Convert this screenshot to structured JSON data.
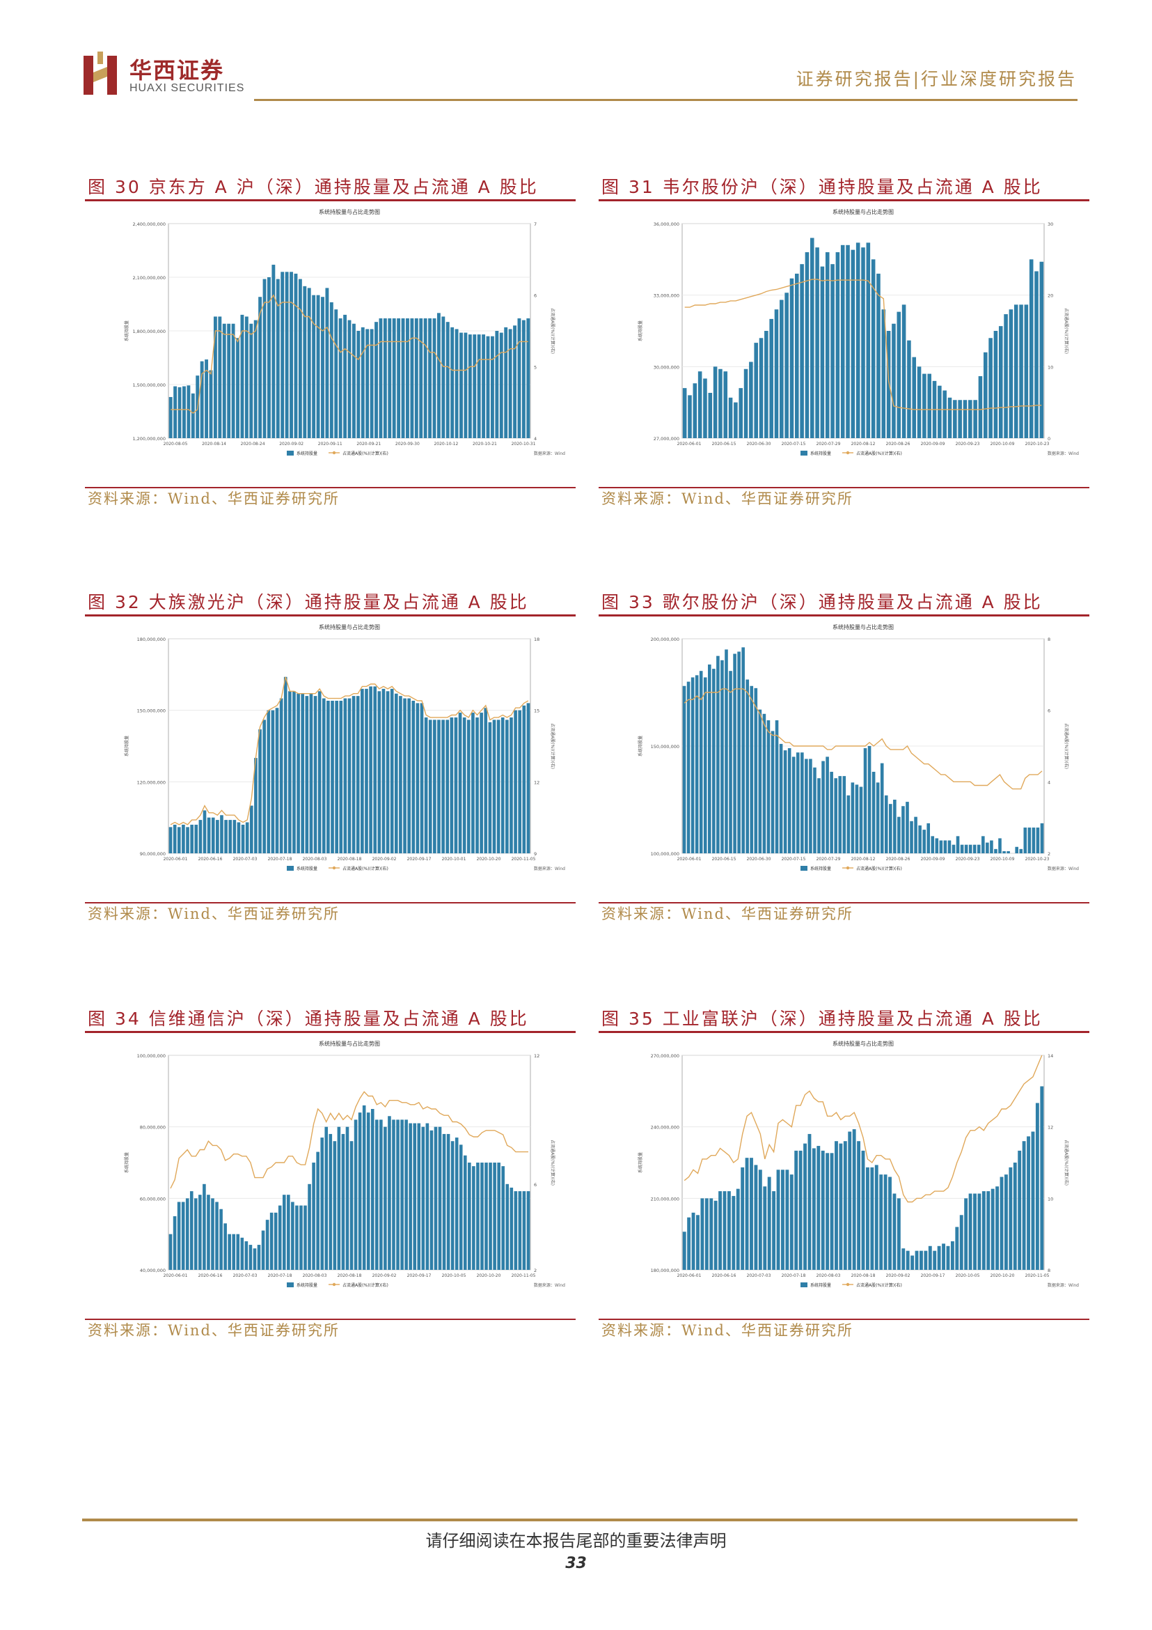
{
  "header": {
    "brand_cn": "华西证券",
    "brand_en": "HUAXI SECURITIES",
    "report_type": "证券研究报告|行业深度研究报告",
    "colors": {
      "brand_red": "#9e2a2a",
      "gold": "#b08a4a",
      "title_red": "#a3242b"
    }
  },
  "figures": [
    {
      "title": "图 30 京东方 A 沪（深）通持股量及占流通 A 股比",
      "source": "资料来源：Wind、华西证券研究所"
    },
    {
      "title": "图 31 韦尔股份沪（深）通持股量及占流通 A 股比",
      "source": "资料来源：Wind、华西证券研究所"
    },
    {
      "title": "图 32 大族激光沪（深）通持股量及占流通 A 股比",
      "source": "资料来源：Wind、华西证券研究所"
    },
    {
      "title": "图 33 歌尔股份沪（深）通持股量及占流通 A 股比",
      "source": "资料来源：Wind、华西证券研究所"
    },
    {
      "title": "图 34 信维通信沪（深）通持股量及占流通 A 股比",
      "source": "资料来源：Wind、华西证券研究所"
    },
    {
      "title": "图 35 工业富联沪（深）通持股量及占流通 A 股比",
      "source": "资料来源：Wind、华西证券研究所"
    }
  ],
  "chart_data": [
    {
      "type": "bar",
      "title": "系统持股量与占比走势图",
      "legend": [
        "系统持股量",
        "占流通A股(%)(计算)(右)"
      ],
      "legend_position": "bottom",
      "source_note": "数据来源：Wind",
      "y_left_ticks": [
        "1,200,000,000",
        "1,500,000,000",
        "1,800,000,000",
        "2,100,000,000",
        "2,400,000,000"
      ],
      "y_left_range": [
        1200000000,
        2400000000
      ],
      "y_right_ticks": [
        "4",
        "5",
        "6",
        "7"
      ],
      "y_right_range": [
        4,
        7
      ],
      "x_ticks": [
        "2020-08-05",
        "2020-08-14",
        "2020-08-24",
        "2020-09-02",
        "2020-09-11",
        "2020-09-21",
        "2020-09-30",
        "2020-10-12",
        "2020-10-21",
        "2020-10-31"
      ],
      "bars": [
        1430,
        1490,
        1485,
        1490,
        1495,
        1450,
        1550,
        1630,
        1640,
        1580,
        1880,
        1880,
        1840,
        1840,
        1840,
        1760,
        1890,
        1880,
        1840,
        1860,
        1990,
        2090,
        2100,
        2170,
        2090,
        2130,
        2130,
        2130,
        2120,
        2090,
        2050,
        2040,
        2000,
        2000,
        1990,
        2040,
        1960,
        1920,
        1870,
        1890,
        1860,
        1840,
        1800,
        1820,
        1810,
        1810,
        1850,
        1870,
        1870,
        1870,
        1870,
        1870,
        1870,
        1870,
        1870,
        1870,
        1870,
        1870,
        1870,
        1870,
        1900,
        1880,
        1850,
        1820,
        1810,
        1790,
        1790,
        1780,
        1780,
        1780,
        1780,
        1770,
        1770,
        1800,
        1790,
        1820,
        1810,
        1830,
        1870,
        1860,
        1870
      ],
      "line": [
        4.4,
        4.4,
        4.4,
        4.4,
        4.4,
        4.35,
        4.4,
        4.9,
        4.95,
        4.9,
        5.5,
        5.5,
        5.45,
        5.45,
        5.45,
        5.35,
        5.5,
        5.5,
        5.45,
        5.5,
        5.75,
        5.9,
        5.9,
        6.0,
        5.85,
        5.9,
        5.9,
        5.9,
        5.85,
        5.8,
        5.7,
        5.7,
        5.6,
        5.55,
        5.5,
        5.55,
        5.4,
        5.3,
        5.2,
        5.25,
        5.2,
        5.15,
        5.1,
        5.2,
        5.3,
        5.3,
        5.3,
        5.35,
        5.35,
        5.35,
        5.35,
        5.35,
        5.35,
        5.35,
        5.4,
        5.4,
        5.35,
        5.3,
        5.2,
        5.2,
        5.1,
        5.0,
        5.0,
        4.95,
        4.95,
        4.95,
        4.95,
        5.0,
        5.0,
        5.1,
        5.1,
        5.1,
        5.1,
        5.15,
        5.2,
        5.2,
        5.25,
        5.25,
        5.35,
        5.35,
        5.35
      ]
    },
    {
      "type": "bar",
      "title": "系统持股量与占比走势图",
      "legend": [
        "系统持股量",
        "占流通A股(%)(计算)(右)"
      ],
      "legend_position": "bottom",
      "source_note": "数据来源：Wind",
      "y_left_ticks": [
        "27,000,000",
        "30,000,000",
        "33,000,000",
        "36,000,000"
      ],
      "y_left_range": [
        27000000,
        36000000
      ],
      "y_right_ticks": [
        "0",
        "10",
        "20",
        "30"
      ],
      "y_right_range": [
        0,
        30
      ],
      "x_ticks": [
        "2020-06-01",
        "2020-06-15",
        "2020-06-30",
        "2020-07-15",
        "2020-07-29",
        "2020-08-12",
        "2020-08-26",
        "2020-09-09",
        "2020-09-23",
        "2020-10-09",
        "2020-10-23"
      ],
      "bars": [
        29.1,
        28.8,
        29.3,
        29.8,
        29.5,
        28.9,
        30.0,
        29.9,
        29.8,
        28.7,
        28.5,
        29.1,
        29.9,
        30.2,
        31.0,
        31.2,
        31.5,
        32.0,
        32.4,
        32.8,
        33.1,
        33.7,
        33.9,
        34.3,
        34.8,
        35.4,
        35.0,
        34.2,
        34.8,
        34.3,
        34.8,
        35.1,
        35.1,
        34.9,
        35.2,
        35.0,
        35.2,
        34.5,
        33.9,
        32.4,
        31.5,
        31.8,
        32.3,
        32.6,
        31.1,
        30.4,
        30.0,
        29.7,
        29.7,
        29.4,
        29.2,
        29.0,
        28.7,
        28.6,
        28.6,
        28.6,
        28.6,
        28.6,
        29.6,
        30.6,
        31.2,
        31.5,
        31.7,
        32.2,
        32.4,
        32.6,
        32.6,
        32.6,
        34.5,
        34.0,
        34.4
      ],
      "line": [
        18.3,
        18.3,
        18.6,
        18.6,
        18.6,
        18.8,
        18.8,
        19.0,
        19.0,
        19.2,
        19.2,
        19.4,
        19.6,
        19.8,
        20.0,
        20.2,
        20.5,
        20.7,
        20.8,
        21.0,
        21.2,
        21.4,
        21.6,
        21.8,
        22.0,
        22.2,
        22.2,
        22.0,
        22.1,
        22.0,
        22.1,
        22.1,
        22.1,
        22.1,
        22.1,
        22.1,
        22.0,
        21.0,
        20.0,
        19.5,
        8.0,
        4.5,
        4.3,
        4.2,
        4.1,
        4.0,
        4.0,
        4.0,
        4.0,
        4.0,
        4.0,
        4.0,
        4.0,
        4.0,
        4.0,
        4.0,
        4.0,
        4.0,
        4.0,
        4.1,
        4.2,
        4.2,
        4.3,
        4.3,
        4.4,
        4.4,
        4.5,
        4.5,
        4.5,
        4.6,
        4.6
      ],
      "y_left_label": "系统持股量"
    },
    {
      "type": "bar",
      "title": "系统持股量与占比走势图",
      "legend": [
        "系统持股量",
        "占流通A股(%)(计算)(右)"
      ],
      "legend_position": "bottom",
      "source_note": "数据来源：Wind",
      "y_left_ticks": [
        "90,000,000",
        "120,000,000",
        "150,000,000",
        "180,000,000"
      ],
      "y_left_range": [
        90000000,
        180000000
      ],
      "y_right_ticks": [
        "9",
        "12",
        "15",
        "18"
      ],
      "y_right_range": [
        9,
        18
      ],
      "x_ticks": [
        "2020-06-01",
        "2020-06-16",
        "2020-07-03",
        "2020-07-18",
        "2020-08-03",
        "2020-08-18",
        "2020-09-02",
        "2020-09-17",
        "2020-10-01",
        "2020-10-20",
        "2020-11-05"
      ],
      "bars": [
        101,
        102,
        101,
        102,
        101,
        102,
        102,
        104,
        108,
        105,
        105,
        104,
        106,
        104,
        104,
        104,
        103,
        102,
        103,
        110,
        130,
        142,
        146,
        150,
        150,
        151,
        155,
        164,
        158,
        158,
        157,
        157,
        156,
        157,
        156,
        158,
        155,
        154,
        154,
        154,
        154,
        155,
        155,
        156,
        156,
        159,
        159,
        160,
        160,
        158,
        159,
        158,
        159,
        157,
        156,
        155,
        155,
        154,
        153,
        153,
        147,
        146,
        146,
        146,
        146,
        146,
        147,
        147,
        149,
        147,
        146,
        149,
        147,
        149,
        151,
        145,
        146,
        146,
        147,
        146,
        147,
        150,
        150,
        152,
        153
      ],
      "line": [
        10.2,
        10.3,
        10.2,
        10.3,
        10.2,
        10.4,
        10.4,
        10.6,
        11.0,
        10.7,
        10.7,
        10.6,
        10.8,
        10.6,
        10.6,
        10.6,
        10.4,
        10.3,
        10.4,
        11.3,
        13.0,
        14.3,
        14.7,
        15.0,
        15.1,
        15.2,
        15.5,
        16.4,
        15.8,
        15.8,
        15.7,
        15.7,
        15.7,
        15.7,
        15.7,
        15.9,
        15.6,
        15.5,
        15.5,
        15.5,
        15.5,
        15.6,
        15.6,
        15.7,
        15.7,
        16.0,
        16.0,
        16.1,
        16.1,
        15.9,
        16.0,
        15.9,
        16.0,
        15.8,
        15.7,
        15.6,
        15.6,
        15.5,
        15.4,
        15.4,
        14.8,
        14.7,
        14.7,
        14.7,
        14.7,
        14.7,
        14.8,
        14.8,
        15.0,
        14.8,
        14.7,
        15.0,
        14.8,
        15.0,
        15.2,
        14.6,
        14.7,
        14.7,
        14.8,
        14.7,
        14.8,
        15.1,
        15.1,
        15.3,
        15.4
      ]
    },
    {
      "type": "bar",
      "title": "系统持股量与占比走势图",
      "legend": [
        "系统持股量",
        "占流通A股(%)(计算)(右)"
      ],
      "legend_position": "bottom",
      "source_note": "数据来源：Wind",
      "y_left_ticks": [
        "100,000,000",
        "150,000,000",
        "200,000,000"
      ],
      "y_left_range": [
        100000000,
        200000000
      ],
      "y_right_ticks": [
        "2",
        "4",
        "6",
        "8"
      ],
      "y_right_range": [
        2,
        8
      ],
      "x_ticks": [
        "2020-06-01",
        "2020-06-15",
        "2020-06-30",
        "2020-07-15",
        "2020-07-29",
        "2020-08-12",
        "2020-08-26",
        "2020-09-09",
        "2020-09-23",
        "2020-10-09",
        "2020-10-23"
      ],
      "bars": [
        178,
        180,
        182,
        183,
        185,
        182,
        188,
        186,
        192,
        190,
        195,
        185,
        193,
        194,
        196,
        181,
        178,
        177,
        167,
        165,
        162,
        157,
        162,
        151,
        148,
        149,
        145,
        147,
        147,
        144,
        144,
        140,
        135,
        143,
        145,
        138,
        135,
        136,
        136,
        127,
        133,
        132,
        131,
        149,
        150,
        138,
        133,
        142,
        127,
        123,
        125,
        117,
        122,
        124,
        115,
        117,
        113,
        111,
        114,
        108,
        107,
        106,
        106,
        106,
        104,
        108,
        104,
        104,
        104,
        104,
        104,
        108,
        105,
        106,
        102,
        107,
        101,
        101,
        100,
        103,
        102,
        112,
        112,
        112,
        112,
        114
      ],
      "line": [
        6.2,
        6.3,
        6.3,
        6.4,
        6.3,
        6.5,
        6.5,
        6.5,
        6.5,
        6.6,
        6.6,
        6.5,
        6.6,
        6.6,
        6.6,
        6.5,
        6.3,
        6.1,
        5.9,
        5.6,
        5.4,
        5.3,
        5.3,
        5.2,
        5.1,
        5.1,
        5.0,
        5.0,
        5.0,
        5.0,
        5.0,
        5.0,
        5.0,
        5.0,
        4.9,
        4.9,
        5.0,
        5.0,
        5.0,
        5.0,
        5.0,
        5.0,
        5.0,
        5.0,
        5.1,
        5.0,
        5.1,
        5.2,
        5.0,
        4.9,
        4.9,
        4.9,
        4.9,
        5.0,
        4.8,
        4.7,
        4.6,
        4.5,
        4.5,
        4.4,
        4.3,
        4.2,
        4.2,
        4.1,
        4.0,
        4.0,
        4.0,
        4.0,
        4.0,
        3.9,
        3.9,
        3.9,
        3.9,
        4.0,
        4.1,
        4.2,
        4.0,
        3.9,
        3.8,
        3.8,
        3.8,
        4.1,
        4.2,
        4.2,
        4.2,
        4.3
      ]
    },
    {
      "type": "bar",
      "title": "系统持股量与占比走势图",
      "legend": [
        "系统持股量",
        "占流通A股(%)(计算)(右)"
      ],
      "legend_position": "bottom",
      "source_note": "数据来源：Wind",
      "y_left_ticks": [
        "40,000,000",
        "60,000,000",
        "80,000,000",
        "100,000,000"
      ],
      "y_left_range": [
        40000000,
        100000000
      ],
      "y_right_ticks": [
        "2",
        "6",
        "12"
      ],
      "y_right_range": [
        2,
        12
      ],
      "x_ticks": [
        "2020-06-01",
        "2020-06-16",
        "2020-07-03",
        "2020-07-18",
        "2020-08-03",
        "2020-08-18",
        "2020-09-02",
        "2020-09-17",
        "2020-10-05",
        "2020-10-20",
        "2020-11-05"
      ],
      "bars": [
        50,
        55,
        59,
        59,
        60,
        62,
        60,
        61,
        64,
        61,
        60,
        59,
        57,
        53,
        50,
        50,
        50,
        49,
        48,
        47,
        46,
        47,
        51,
        54,
        56,
        56,
        58,
        61,
        61,
        59,
        58,
        58,
        58,
        64,
        70,
        73,
        77,
        80,
        78,
        76,
        80,
        78,
        80,
        76,
        82,
        84,
        86,
        84,
        85,
        82,
        82,
        80,
        83,
        82,
        82,
        82,
        82,
        81,
        81,
        81,
        80,
        81,
        79,
        80,
        80,
        78,
        78,
        76,
        77,
        75,
        72,
        70,
        69,
        70,
        70,
        70,
        70,
        70,
        70,
        69,
        64,
        63,
        62,
        62,
        62,
        62
      ],
      "line": [
        5.8,
        6.2,
        7.2,
        7.4,
        7.6,
        7.3,
        7.3,
        7.6,
        7.6,
        8.0,
        7.8,
        7.8,
        7.6,
        7.1,
        7.2,
        7.4,
        7.4,
        7.3,
        7.3,
        7.0,
        6.3,
        6.3,
        6.3,
        6.7,
        6.8,
        7.0,
        7.0,
        7.0,
        7.3,
        7.3,
        7.0,
        6.9,
        6.9,
        7.7,
        8.8,
        9.5,
        9.3,
        8.9,
        9.3,
        9.0,
        9.3,
        9.0,
        9.2,
        9.0,
        9.6,
        10.0,
        10.3,
        10.1,
        10.1,
        9.7,
        9.8,
        9.6,
        9.9,
        9.9,
        9.9,
        9.8,
        9.8,
        9.7,
        9.7,
        9.8,
        9.5,
        9.6,
        9.5,
        9.5,
        9.3,
        9.2,
        9.2,
        8.9,
        8.9,
        8.8,
        8.6,
        8.3,
        8.2,
        8.2,
        8.4,
        8.5,
        8.5,
        8.5,
        8.4,
        8.3,
        7.8,
        7.7,
        7.5,
        7.5,
        7.5,
        7.5
      ]
    },
    {
      "type": "bar",
      "title": "系统持股量与占比走势图",
      "legend": [
        "系统持股量",
        "占流通A股(%)(计算)(右)"
      ],
      "legend_position": "bottom",
      "source_note": "数据来源：Wind",
      "y_left_ticks": [
        "180,000,000",
        "210,000,000",
        "240,000,000",
        "270,000,000"
      ],
      "y_left_range": [
        180000000,
        270000000
      ],
      "y_right_ticks": [
        "8",
        "10",
        "12",
        "14"
      ],
      "y_right_range": [
        8,
        14
      ],
      "x_ticks": [
        "2020-06-01",
        "2020-06-16",
        "2020-07-03",
        "2020-07-18",
        "2020-08-03",
        "2020-08-18",
        "2020-09-02",
        "2020-09-17",
        "2020-10-05",
        "2020-10-20",
        "2020-11-05"
      ],
      "bars": [
        196,
        202,
        204,
        203,
        210,
        210,
        210,
        209,
        213,
        213,
        213,
        211,
        214,
        223,
        227,
        227,
        224,
        222,
        215,
        219,
        213,
        222,
        222,
        222,
        220,
        230,
        230,
        233,
        237,
        231,
        232,
        230,
        229,
        229,
        234,
        233,
        234,
        238,
        239,
        234,
        230,
        223,
        223,
        224,
        220,
        220,
        219,
        212,
        210,
        189,
        188,
        186,
        188,
        188,
        188,
        190,
        188,
        190,
        191,
        190,
        192,
        198,
        203,
        210,
        212,
        212,
        212,
        213,
        213,
        214,
        215,
        219,
        220,
        223,
        225,
        230,
        234,
        236,
        238,
        250,
        257
      ],
      "line": [
        10.5,
        10.6,
        10.8,
        10.7,
        11.1,
        11.1,
        11.2,
        11.2,
        11.4,
        11.3,
        11.2,
        11.0,
        11.1,
        11.8,
        12.3,
        12.4,
        12.1,
        11.8,
        11.1,
        11.5,
        11.3,
        12.1,
        12.2,
        12.1,
        12.0,
        12.6,
        12.6,
        12.9,
        13.0,
        12.8,
        12.7,
        12.7,
        12.3,
        12.3,
        12.4,
        12.2,
        12.3,
        12.3,
        12.4,
        12.1,
        11.7,
        11.1,
        11.0,
        11.2,
        11.2,
        11.1,
        11.1,
        10.8,
        10.6,
        10.1,
        9.9,
        9.9,
        10.0,
        10.0,
        10.1,
        10.1,
        10.2,
        10.2,
        10.2,
        10.3,
        10.6,
        11.0,
        11.3,
        11.7,
        11.9,
        11.9,
        12.0,
        11.9,
        12.1,
        12.2,
        12.3,
        12.5,
        12.5,
        12.6,
        12.8,
        13.0,
        13.2,
        13.3,
        13.4,
        13.7,
        14.0
      ]
    }
  ],
  "footer": {
    "disclaimer": "请仔细阅读在本报告尾部的重要法律声明",
    "page_number": "33"
  }
}
